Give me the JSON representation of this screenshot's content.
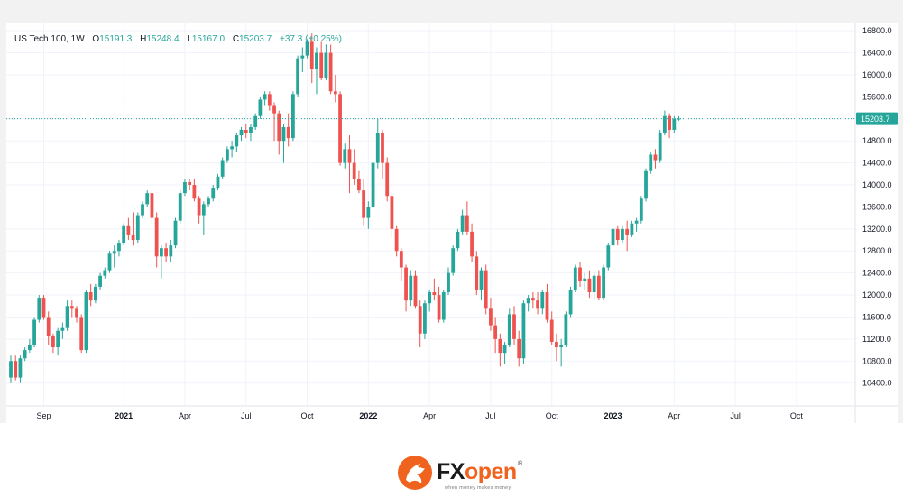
{
  "header": {
    "symbol": "US Tech 100, 1W",
    "open_label": "O",
    "open": "15191.3",
    "high_label": "H",
    "high": "15248.4",
    "low_label": "L",
    "low": "15167.0",
    "close_label": "C",
    "close": "15203.7",
    "change": "+37.3 (+0.25%)"
  },
  "price_tag": "15203.7",
  "brand": {
    "fx": "FX",
    "open": "open",
    "registered": "®",
    "tagline": "when money makes money"
  },
  "colors": {
    "up": "#26a69a",
    "down": "#ef5350",
    "brand_orange": "#f0631e",
    "last_price_line": "#26a69a"
  },
  "chart_data": {
    "type": "candlestick",
    "title": "US Tech 100, 1W",
    "ylim": [
      10100,
      16950
    ],
    "y_ticks": [
      10400,
      10800,
      11200,
      11600,
      12000,
      12400,
      12800,
      13200,
      13600,
      14000,
      14400,
      14800,
      15200,
      15600,
      16000,
      16400,
      16800
    ],
    "y_tick_labels": [
      "10400.0",
      "10800.0",
      "11200.0",
      "11600.0",
      "12000.0",
      "12400.0",
      "12800.0",
      "13200.0",
      "13600.0",
      "14000.0",
      "14400.0",
      "14800.0",
      "15200.0",
      "15600.0",
      "16000.0",
      "16400.0",
      "16800.0"
    ],
    "x_tick_labels": [
      {
        "label": "Sep",
        "week": 7,
        "bold": false
      },
      {
        "label": "2021",
        "week": 24,
        "bold": true
      },
      {
        "label": "Apr",
        "week": 37,
        "bold": false
      },
      {
        "label": "Jul",
        "week": 50,
        "bold": false
      },
      {
        "label": "Oct",
        "week": 63,
        "bold": false
      },
      {
        "label": "2022",
        "week": 76,
        "bold": true
      },
      {
        "label": "Apr",
        "week": 89,
        "bold": false
      },
      {
        "label": "Jul",
        "week": 102,
        "bold": false
      },
      {
        "label": "Oct",
        "week": 115,
        "bold": false
      },
      {
        "label": "2023",
        "week": 128,
        "bold": true
      },
      {
        "label": "Apr",
        "week": 141,
        "bold": false
      },
      {
        "label": "Jul",
        "week": 154,
        "bold": false
      },
      {
        "label": "Oct",
        "week": 167,
        "bold": false
      }
    ],
    "last_price": 15203.7,
    "grid": true,
    "legend": "top-left",
    "candles": [
      [
        10500,
        10900,
        10400,
        10800
      ],
      [
        10800,
        10900,
        10450,
        10500
      ],
      [
        10500,
        10900,
        10400,
        10850
      ],
      [
        10850,
        11050,
        10800,
        11000
      ],
      [
        11000,
        11200,
        10950,
        11100
      ],
      [
        11100,
        11600,
        11050,
        11550
      ],
      [
        11550,
        12000,
        11500,
        11950
      ],
      [
        11950,
        12000,
        11550,
        11600
      ],
      [
        11600,
        11700,
        11100,
        11250
      ],
      [
        11250,
        11300,
        10950,
        11050
      ],
      [
        11050,
        11400,
        10900,
        11350
      ],
      [
        11350,
        11500,
        11200,
        11400
      ],
      [
        11400,
        11900,
        11350,
        11800
      ],
      [
        11800,
        11900,
        11600,
        11750
      ],
      [
        11750,
        11800,
        11500,
        11600
      ],
      [
        11600,
        11650,
        10950,
        11000
      ],
      [
        11000,
        12100,
        10950,
        12050
      ],
      [
        12050,
        12200,
        11800,
        11900
      ],
      [
        11900,
        12200,
        11850,
        12150
      ],
      [
        12150,
        12400,
        12100,
        12350
      ],
      [
        12350,
        12500,
        12300,
        12450
      ],
      [
        12450,
        12800,
        12400,
        12750
      ],
      [
        12750,
        12900,
        12500,
        12800
      ],
      [
        12800,
        13000,
        12700,
        12950
      ],
      [
        12950,
        13300,
        12900,
        13250
      ],
      [
        13250,
        13400,
        13000,
        13100
      ],
      [
        13100,
        13500,
        12900,
        13000
      ],
      [
        13000,
        13500,
        12950,
        13450
      ],
      [
        13450,
        13700,
        13400,
        13650
      ],
      [
        13650,
        13900,
        13600,
        13850
      ],
      [
        13850,
        13900,
        13300,
        13400
      ],
      [
        13400,
        13500,
        12500,
        12700
      ],
      [
        12700,
        12900,
        12300,
        12850
      ],
      [
        12850,
        12950,
        12600,
        12700
      ],
      [
        12700,
        13000,
        12600,
        12900
      ],
      [
        12900,
        13400,
        12850,
        13350
      ],
      [
        13350,
        13900,
        13300,
        13850
      ],
      [
        13850,
        14100,
        13800,
        14050
      ],
      [
        14050,
        14100,
        13900,
        14000
      ],
      [
        14000,
        14100,
        13700,
        13750
      ],
      [
        13750,
        13800,
        13300,
        13450
      ],
      [
        13450,
        13700,
        13100,
        13650
      ],
      [
        13650,
        13800,
        13600,
        13750
      ],
      [
        13750,
        14000,
        13700,
        13950
      ],
      [
        13950,
        14200,
        13900,
        14150
      ],
      [
        14150,
        14500,
        14100,
        14450
      ],
      [
        14450,
        14700,
        14400,
        14650
      ],
      [
        14650,
        14800,
        14500,
        14700
      ],
      [
        14700,
        14950,
        14600,
        14900
      ],
      [
        14900,
        15050,
        14800,
        15000
      ],
      [
        15000,
        15100,
        14850,
        14950
      ],
      [
        14950,
        15100,
        14800,
        15050
      ],
      [
        15050,
        15300,
        15000,
        15250
      ],
      [
        15250,
        15600,
        15200,
        15550
      ],
      [
        15550,
        15700,
        15450,
        15650
      ],
      [
        15650,
        15700,
        15350,
        15450
      ],
      [
        15450,
        15500,
        14800,
        15300
      ],
      [
        15300,
        15350,
        14550,
        14800
      ],
      [
        14800,
        15100,
        14400,
        15050
      ],
      [
        15050,
        15300,
        14700,
        14850
      ],
      [
        14850,
        15700,
        14800,
        15650
      ],
      [
        15650,
        16350,
        15600,
        16300
      ],
      [
        16300,
        16500,
        16050,
        16350
      ],
      [
        16350,
        16650,
        16300,
        16600
      ],
      [
        16600,
        16750,
        15850,
        16100
      ],
      [
        16100,
        16500,
        15650,
        16400
      ],
      [
        16400,
        16600,
        15900,
        15950
      ],
      [
        15950,
        16550,
        15900,
        16400
      ],
      [
        16400,
        16550,
        15650,
        15700
      ],
      [
        15700,
        16000,
        15500,
        15650
      ],
      [
        15650,
        15700,
        14350,
        14400
      ],
      [
        14400,
        14750,
        14300,
        14650
      ],
      [
        14650,
        14900,
        13850,
        14400
      ],
      [
        14400,
        14650,
        14000,
        14100
      ],
      [
        14100,
        14250,
        13850,
        13900
      ],
      [
        13900,
        14100,
        13250,
        13400
      ],
      [
        13400,
        13700,
        13200,
        13600
      ],
      [
        13600,
        14450,
        13550,
        14400
      ],
      [
        14400,
        15200,
        14300,
        14950
      ],
      [
        14950,
        15000,
        14100,
        14400
      ],
      [
        14400,
        14500,
        13700,
        13800
      ],
      [
        13800,
        13850,
        13050,
        13200
      ],
      [
        13200,
        13250,
        12700,
        12800
      ],
      [
        12800,
        12850,
        12250,
        12500
      ],
      [
        12500,
        12550,
        11700,
        11900
      ],
      [
        11900,
        12450,
        11800,
        12350
      ],
      [
        12350,
        12450,
        11750,
        11800
      ],
      [
        11800,
        11900,
        11050,
        11300
      ],
      [
        11300,
        11900,
        11200,
        11850
      ],
      [
        11850,
        12100,
        11700,
        12050
      ],
      [
        12050,
        12300,
        11900,
        12000
      ],
      [
        12000,
        12150,
        11500,
        11550
      ],
      [
        11550,
        12100,
        11500,
        12050
      ],
      [
        12050,
        12500,
        12000,
        12400
      ],
      [
        12400,
        12900,
        12350,
        12850
      ],
      [
        12850,
        13200,
        12800,
        13150
      ],
      [
        13150,
        13550,
        13100,
        13450
      ],
      [
        13450,
        13700,
        13100,
        13150
      ],
      [
        13150,
        13300,
        12600,
        12700
      ],
      [
        12700,
        12800,
        12000,
        12100
      ],
      [
        12100,
        12500,
        11900,
        12450
      ],
      [
        12450,
        12550,
        11650,
        11750
      ],
      [
        11750,
        11950,
        11350,
        11450
      ],
      [
        11450,
        11600,
        10950,
        11200
      ],
      [
        11200,
        11300,
        10700,
        10950
      ],
      [
        10950,
        11150,
        10750,
        11100
      ],
      [
        11100,
        11750,
        11050,
        11650
      ],
      [
        11650,
        11800,
        11100,
        11200
      ],
      [
        11200,
        11350,
        10700,
        10850
      ],
      [
        10850,
        11900,
        10750,
        11850
      ],
      [
        11850,
        12000,
        11700,
        11950
      ],
      [
        11950,
        12050,
        11750,
        11900
      ],
      [
        11900,
        12050,
        11650,
        11750
      ],
      [
        11750,
        12100,
        11650,
        12050
      ],
      [
        12050,
        12200,
        11500,
        11550
      ],
      [
        11550,
        11700,
        11100,
        11150
      ],
      [
        11150,
        11300,
        10800,
        11050
      ],
      [
        11050,
        11200,
        10700,
        11100
      ],
      [
        11100,
        11700,
        11050,
        11650
      ],
      [
        11650,
        12150,
        11600,
        12100
      ],
      [
        12100,
        12550,
        12050,
        12500
      ],
      [
        12500,
        12600,
        12150,
        12250
      ],
      [
        12250,
        12400,
        12100,
        12300
      ],
      [
        12300,
        12450,
        11950,
        12050
      ],
      [
        12050,
        12400,
        11900,
        12350
      ],
      [
        12350,
        12450,
        11900,
        11950
      ],
      [
        11950,
        12550,
        11900,
        12500
      ],
      [
        12500,
        12950,
        12450,
        12900
      ],
      [
        12900,
        13300,
        12850,
        13200
      ],
      [
        13200,
        13250,
        12900,
        13000
      ],
      [
        13000,
        13250,
        12950,
        13200
      ],
      [
        13200,
        13350,
        12800,
        13100
      ],
      [
        13100,
        13350,
        13050,
        13300
      ],
      [
        13300,
        13400,
        13150,
        13350
      ],
      [
        13350,
        13800,
        13300,
        13750
      ],
      [
        13750,
        14300,
        13700,
        14250
      ],
      [
        14250,
        14600,
        14200,
        14550
      ],
      [
        14550,
        14650,
        14300,
        14450
      ],
      [
        14450,
        15000,
        14400,
        14950
      ],
      [
        14950,
        15350,
        14900,
        15250
      ],
      [
        15250,
        15300,
        14850,
        15000
      ],
      [
        15000,
        15250,
        14950,
        15200
      ],
      [
        15191.3,
        15248.4,
        15167.0,
        15203.7
      ]
    ]
  }
}
